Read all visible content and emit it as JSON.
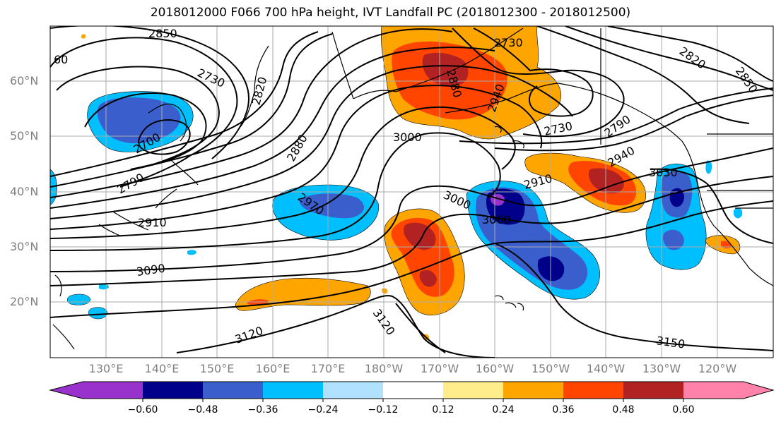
{
  "title": "2018012000 F066 700 hPa height, IVT Landfall PC (2018012300 - 2018012500)",
  "map": {
    "lat_labels": [
      "60°N",
      "50°N",
      "40°N",
      "30°N",
      "20°N"
    ],
    "lon_labels": [
      "130°E",
      "140°E",
      "150°E",
      "160°E",
      "170°E",
      "180°W",
      "170°W",
      "160°W",
      "150°W",
      "140°W",
      "130°W",
      "120°W"
    ]
  },
  "contour_labels": [
    "2850",
    "60",
    "2730",
    "2820",
    "2880",
    "2730",
    "2820",
    "2850",
    "2880",
    "2940",
    "3000",
    "2730",
    "2790",
    "2700",
    "2790",
    "2940",
    "2910",
    "3030",
    "2970",
    "3000",
    "3060",
    "2910",
    "3090",
    "3120",
    "3120",
    "3150"
  ],
  "colorbar": {
    "tick_labels": [
      "−0.60",
      "−0.48",
      "−0.36",
      "−0.24",
      "−0.12",
      "0.12",
      "0.24",
      "0.36",
      "0.48",
      "0.60"
    ],
    "colors": [
      "#9932CC",
      "#00008B",
      "#3A5FCD",
      "#00BFFF",
      "#B0E2FF",
      "#FFFFFF",
      "#FFEC8B",
      "#FFA500",
      "#FF4500",
      "#B22222",
      "#FF82AB"
    ]
  },
  "colors": {
    "grid": "#aaaaaa",
    "contour": "#000000",
    "coast": "#000000"
  }
}
